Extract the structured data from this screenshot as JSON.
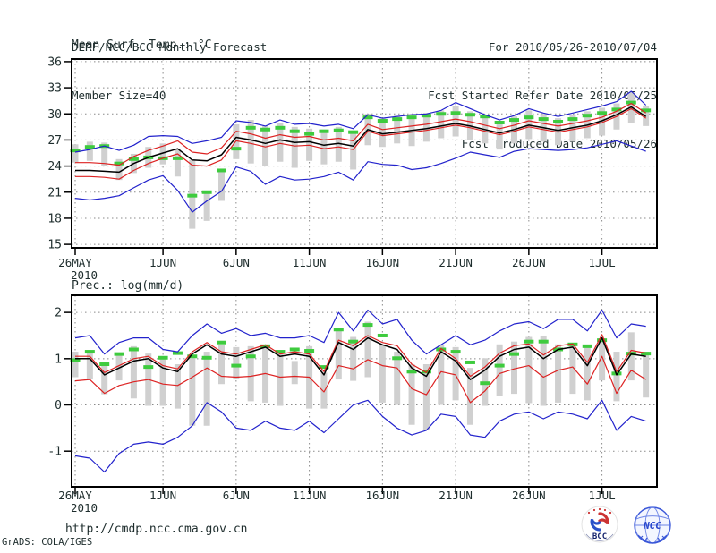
{
  "header": {
    "left_lines": [
      "DERF/NCC/BCC Monthly Forecast",
      "Member Size=40"
    ],
    "right_lines": [
      "For 2010/05/26-2010/07/04",
      "Fcst Started Refer Date 2010/05/25",
      "Fcst Produced Date 2010/05/26"
    ]
  },
  "footer": {
    "url": "http://cmdp.ncc.cma.gov.cn",
    "credit": "GrADS: COLA/IGES"
  },
  "logos": {
    "bcc": "BCC",
    "ncc": "NCC"
  },
  "colors": {
    "text": "#1e2d2d",
    "frame": "#000000",
    "grid": "#8a8a8a",
    "bar": "#d0d0d0",
    "envelope": "#2222cc",
    "std": "#dd2222",
    "mean": "#000000",
    "obs": "#3ecb3e"
  },
  "chart_data": [
    {
      "type": "line",
      "title": "Mean Surf. Temp.: °C",
      "x": {
        "tick_labels": [
          "26MAY",
          "1JUN",
          "6JUN",
          "11JUN",
          "16JUN",
          "21JUN",
          "26JUN",
          "1JUL"
        ],
        "tick_indices": [
          0,
          6,
          11,
          16,
          21,
          26,
          31,
          36
        ],
        "year_label": "2010",
        "n_points": 40
      },
      "y": {
        "lim": [
          14.6,
          36.3
        ],
        "ticks": [
          15,
          18,
          21,
          24,
          27,
          30,
          33,
          36
        ]
      },
      "legend": "off",
      "grid": "dotted",
      "series": [
        {
          "name": "ensemble-max",
          "role": "envelope",
          "values": [
            25.6,
            25.9,
            26.3,
            25.8,
            26.4,
            27.4,
            27.5,
            27.4,
            26.6,
            26.9,
            27.3,
            29.2,
            29.0,
            28.6,
            29.3,
            28.8,
            28.9,
            28.6,
            28.8,
            28.3,
            29.9,
            29.5,
            29.7,
            29.9,
            30.0,
            30.4,
            31.3,
            30.6,
            29.9,
            29.3,
            29.8,
            30.6,
            30.1,
            29.7,
            30.1,
            30.5,
            30.9,
            31.4,
            32.6,
            31.0
          ]
        },
        {
          "name": "mean-plus-std",
          "role": "std",
          "values": [
            24.4,
            24.4,
            24.3,
            24.1,
            25.1,
            25.8,
            26.3,
            26.9,
            25.6,
            25.4,
            26.1,
            28.0,
            27.7,
            27.2,
            27.6,
            27.3,
            27.4,
            27.0,
            27.2,
            26.9,
            28.8,
            28.2,
            28.4,
            28.6,
            28.8,
            29.1,
            29.4,
            29.1,
            28.7,
            28.3,
            28.7,
            29.2,
            28.9,
            28.6,
            28.9,
            29.2,
            29.6,
            30.3,
            31.2,
            30.1
          ]
        },
        {
          "name": "ensemble-mean",
          "role": "mean",
          "values": [
            23.5,
            23.5,
            23.4,
            23.3,
            24.3,
            25.0,
            25.5,
            26.0,
            24.7,
            24.6,
            25.3,
            27.3,
            27.0,
            26.6,
            27.0,
            26.7,
            26.8,
            26.4,
            26.6,
            26.3,
            28.2,
            27.7,
            27.9,
            28.1,
            28.3,
            28.6,
            28.9,
            28.6,
            28.2,
            27.8,
            28.2,
            28.7,
            28.4,
            28.1,
            28.4,
            28.7,
            29.2,
            29.9,
            30.8,
            29.7
          ]
        },
        {
          "name": "mean-minus-std",
          "role": "std",
          "values": [
            22.8,
            22.8,
            22.7,
            22.5,
            23.5,
            24.3,
            24.9,
            25.4,
            24.1,
            24.0,
            24.7,
            26.9,
            26.6,
            26.2,
            26.6,
            26.3,
            26.4,
            26.0,
            26.2,
            25.9,
            28.0,
            27.5,
            27.7,
            27.9,
            28.1,
            28.4,
            28.7,
            28.4,
            28.0,
            27.6,
            28.0,
            28.5,
            28.2,
            27.9,
            28.2,
            28.5,
            29.0,
            29.7,
            30.6,
            29.5
          ]
        },
        {
          "name": "ensemble-min",
          "role": "envelope",
          "values": [
            20.3,
            20.1,
            20.3,
            20.6,
            21.5,
            22.4,
            22.9,
            21.2,
            18.7,
            20.0,
            21.1,
            23.9,
            23.4,
            21.9,
            22.8,
            22.4,
            22.5,
            22.8,
            23.3,
            22.4,
            24.5,
            24.2,
            24.1,
            23.6,
            23.8,
            24.3,
            24.9,
            25.6,
            25.3,
            25.0,
            25.7,
            26.0,
            25.9,
            25.8,
            25.9,
            26.1,
            26.5,
            26.9,
            26.3,
            25.7
          ]
        },
        {
          "name": "observation-dashes",
          "role": "obs",
          "values": [
            25.8,
            26.2,
            26.3,
            24.3,
            24.8,
            25.0,
            24.9,
            24.9,
            20.6,
            21.0,
            23.5,
            26.0,
            28.4,
            28.2,
            28.4,
            28.0,
            27.7,
            28.0,
            28.1,
            27.9,
            29.6,
            29.2,
            29.4,
            29.6,
            29.8,
            30.0,
            30.1,
            29.9,
            29.7,
            29.0,
            29.3,
            29.6,
            29.4,
            29.1,
            29.4,
            29.8,
            30.1,
            30.5,
            31.3,
            30.4
          ]
        }
      ],
      "bars": [
        [
          24.4,
          26.5
        ],
        [
          24.6,
          26.8
        ],
        [
          24.0,
          26.7
        ],
        [
          22.4,
          24.8
        ],
        [
          23.2,
          25.4
        ],
        [
          23.8,
          26.2
        ],
        [
          24.2,
          26.6
        ],
        [
          22.8,
          25.9
        ],
        [
          16.8,
          24.7
        ],
        [
          17.7,
          21.0
        ],
        [
          20.0,
          23.5
        ],
        [
          24.8,
          28.8
        ],
        [
          24.3,
          29.3
        ],
        [
          24.0,
          28.6
        ],
        [
          24.5,
          28.9
        ],
        [
          23.8,
          28.5
        ],
        [
          24.6,
          28.3
        ],
        [
          24.2,
          28.2
        ],
        [
          24.5,
          28.5
        ],
        [
          23.6,
          27.9
        ],
        [
          26.4,
          30.0
        ],
        [
          26.2,
          29.5
        ],
        [
          26.6,
          29.8
        ],
        [
          26.3,
          30.0
        ],
        [
          26.8,
          30.1
        ],
        [
          27.2,
          30.4
        ],
        [
          27.4,
          30.9
        ],
        [
          27.0,
          30.3
        ],
        [
          26.6,
          29.8
        ],
        [
          25.9,
          29.2
        ],
        [
          26.6,
          29.7
        ],
        [
          27.1,
          30.4
        ],
        [
          26.8,
          30.0
        ],
        [
          26.4,
          29.5
        ],
        [
          26.8,
          29.9
        ],
        [
          27.2,
          30.3
        ],
        [
          27.5,
          30.7
        ],
        [
          28.2,
          31.2
        ],
        [
          29.0,
          32.5
        ],
        [
          28.6,
          30.9
        ]
      ]
    },
    {
      "type": "line",
      "title": "Prec.: log(mm/d)",
      "x": {
        "tick_labels": [
          "26MAY",
          "1JUN",
          "6JUN",
          "11JUN",
          "16JUN",
          "21JUN",
          "26JUN",
          "1JUL"
        ],
        "tick_indices": [
          0,
          6,
          11,
          16,
          21,
          26,
          31,
          36
        ],
        "year_label": "2010",
        "n_points": 40
      },
      "y": {
        "lim": [
          -1.77,
          2.37
        ],
        "ticks": [
          -1,
          0,
          1,
          2
        ]
      },
      "legend": "off",
      "grid": "dotted",
      "series": [
        {
          "name": "ensemble-max",
          "role": "envelope",
          "values": [
            1.45,
            1.5,
            1.1,
            1.35,
            1.45,
            1.45,
            1.2,
            1.15,
            1.5,
            1.75,
            1.55,
            1.65,
            1.5,
            1.55,
            1.45,
            1.45,
            1.5,
            1.35,
            2.0,
            1.6,
            2.05,
            1.75,
            1.85,
            1.4,
            1.1,
            1.3,
            1.5,
            1.3,
            1.4,
            1.6,
            1.75,
            1.8,
            1.65,
            1.85,
            1.85,
            1.6,
            2.05,
            1.45,
            1.75,
            1.7
          ]
        },
        {
          "name": "mean-plus-std",
          "role": "std",
          "values": [
            1.05,
            1.05,
            0.7,
            0.85,
            1.0,
            1.05,
            0.85,
            0.78,
            1.15,
            1.35,
            1.15,
            1.1,
            1.2,
            1.3,
            1.1,
            1.15,
            1.1,
            0.72,
            1.4,
            1.28,
            1.5,
            1.35,
            1.28,
            0.88,
            0.7,
            1.22,
            1.0,
            0.62,
            0.82,
            1.12,
            1.28,
            1.32,
            1.08,
            1.28,
            1.32,
            0.92,
            1.52,
            0.72,
            1.18,
            1.12
          ]
        },
        {
          "name": "ensemble-mean",
          "role": "mean",
          "values": [
            1.0,
            1.0,
            0.65,
            0.8,
            0.95,
            1.0,
            0.8,
            0.72,
            1.1,
            1.3,
            1.1,
            1.05,
            1.15,
            1.25,
            1.05,
            1.1,
            1.05,
            0.65,
            1.35,
            1.2,
            1.45,
            1.3,
            1.2,
            0.8,
            0.62,
            1.15,
            0.95,
            0.55,
            0.75,
            1.05,
            1.2,
            1.25,
            1.0,
            1.2,
            1.25,
            0.85,
            1.45,
            0.65,
            1.1,
            1.05
          ]
        },
        {
          "name": "mean-minus-std",
          "role": "std",
          "values": [
            0.52,
            0.55,
            0.25,
            0.42,
            0.5,
            0.55,
            0.45,
            0.42,
            0.6,
            0.8,
            0.62,
            0.6,
            0.62,
            0.68,
            0.6,
            0.62,
            0.6,
            0.28,
            0.85,
            0.78,
            0.98,
            0.85,
            0.8,
            0.35,
            0.22,
            0.72,
            0.65,
            0.05,
            0.3,
            0.68,
            0.78,
            0.85,
            0.6,
            0.75,
            0.82,
            0.45,
            1.05,
            0.25,
            0.75,
            0.55
          ]
        },
        {
          "name": "ensemble-min",
          "role": "envelope",
          "values": [
            -1.1,
            -1.15,
            -1.45,
            -1.05,
            -0.85,
            -0.8,
            -0.85,
            -0.7,
            -0.45,
            0.05,
            -0.15,
            -0.5,
            -0.55,
            -0.35,
            -0.5,
            -0.55,
            -0.35,
            -0.6,
            -0.3,
            0.0,
            0.1,
            -0.25,
            -0.5,
            -0.65,
            -0.55,
            -0.2,
            -0.25,
            -0.65,
            -0.7,
            -0.35,
            -0.2,
            -0.15,
            -0.3,
            -0.15,
            -0.2,
            -0.3,
            0.1,
            -0.55,
            -0.25,
            -0.35
          ]
        },
        {
          "name": "observation-dashes",
          "role": "obs",
          "values": [
            0.97,
            1.15,
            0.88,
            1.1,
            1.2,
            0.82,
            1.02,
            1.12,
            1.05,
            1.02,
            1.35,
            0.85,
            1.05,
            1.27,
            1.15,
            1.2,
            1.17,
            0.82,
            1.63,
            1.37,
            1.73,
            1.5,
            1.01,
            0.72,
            0.72,
            1.2,
            1.15,
            0.92,
            0.47,
            0.85,
            1.1,
            1.37,
            1.37,
            1.2,
            1.31,
            1.27,
            1.4,
            0.68,
            1.11,
            1.11
          ]
        }
      ],
      "bars": [
        [
          0.6,
          1.15
        ],
        [
          0.55,
          1.15
        ],
        [
          0.23,
          0.88
        ],
        [
          0.53,
          1.11
        ],
        [
          0.14,
          1.27
        ],
        [
          -0.02,
          1.11
        ],
        [
          -0.02,
          1.01
        ],
        [
          -0.08,
          0.88
        ],
        [
          -0.45,
          1.01
        ],
        [
          -0.45,
          1.15
        ],
        [
          0.45,
          1.3
        ],
        [
          0.55,
          1.25
        ],
        [
          0.08,
          1.27
        ],
        [
          0.05,
          1.3
        ],
        [
          -0.02,
          1.15
        ],
        [
          0.45,
          0.95
        ],
        [
          -0.08,
          1.27
        ],
        [
          -0.08,
          0.7
        ],
        [
          0.55,
          1.63
        ],
        [
          0.52,
          1.47
        ],
        [
          0.6,
          1.8
        ],
        [
          0.05,
          1.3
        ],
        [
          0.0,
          1.15
        ],
        [
          -0.43,
          0.88
        ],
        [
          -0.55,
          0.88
        ],
        [
          0.0,
          1.3
        ],
        [
          0.1,
          1.25
        ],
        [
          -0.43,
          0.8
        ],
        [
          -0.02,
          1.01
        ],
        [
          0.2,
          1.31
        ],
        [
          0.24,
          1.37
        ],
        [
          0.04,
          1.47
        ],
        [
          -0.02,
          1.5
        ],
        [
          0.05,
          1.31
        ],
        [
          0.24,
          1.3
        ],
        [
          0.1,
          1.25
        ],
        [
          0.53,
          1.44
        ],
        [
          0.08,
          1.15
        ],
        [
          0.53,
          1.57
        ],
        [
          0.16,
          1.15
        ]
      ]
    }
  ]
}
